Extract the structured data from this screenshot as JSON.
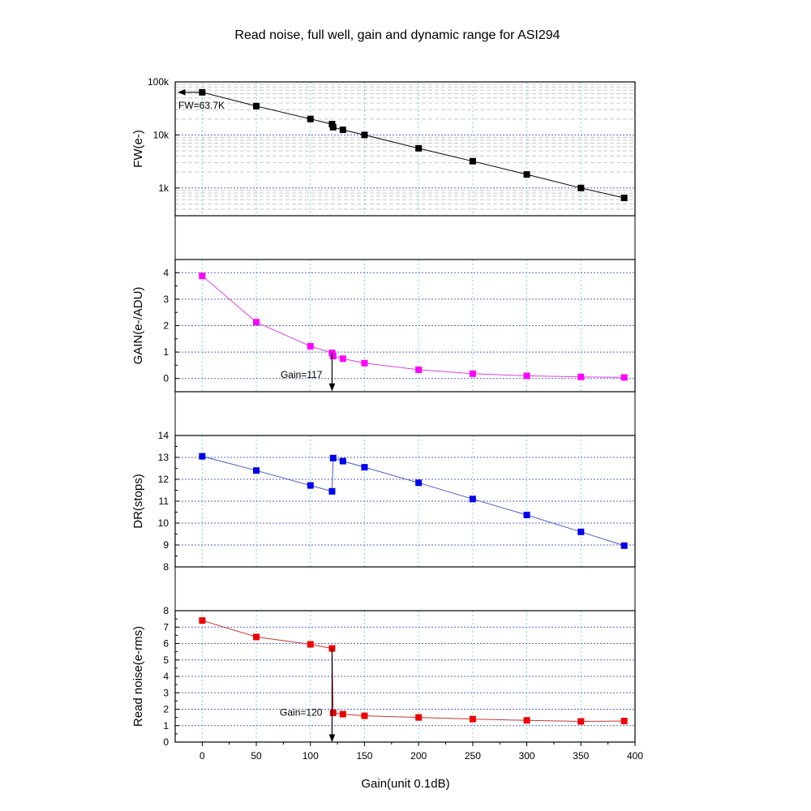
{
  "title": "Read noise, full well, gain and dynamic range for ASI294",
  "xlabel": "Gain(unit 0.1dB)",
  "xlim": [
    -25,
    400
  ],
  "xticks": [
    0,
    50,
    100,
    150,
    200,
    250,
    300,
    350,
    400
  ],
  "chart_data": [
    {
      "type": "line",
      "id": "fw",
      "ylabel": "FW(e-)",
      "yscale": "log",
      "ylim": [
        300,
        100000
      ],
      "yticks": [
        1000,
        10000,
        100000
      ],
      "ytick_labels": [
        "1k",
        "10k",
        "100k"
      ],
      "color": "#000000",
      "marker_color": "#000000",
      "x": [
        0,
        50,
        100,
        120,
        121,
        130,
        150,
        200,
        250,
        300,
        350,
        390
      ],
      "y": [
        63700,
        35000,
        20000,
        16000,
        14000,
        12500,
        10000,
        5600,
        3200,
        1800,
        1000,
        650
      ],
      "annotation": {
        "text": "FW=63.7K",
        "arrow_from": [
          0,
          63700
        ],
        "arrow_to": [
          -22,
          63700
        ]
      }
    },
    {
      "type": "line",
      "id": "gain",
      "ylabel": "GAIN(e-/ADU)",
      "yscale": "linear",
      "ylim": [
        -0.5,
        4.5
      ],
      "yticks": [
        0,
        1,
        2,
        3,
        4
      ],
      "ytick_labels": [
        "0",
        "1",
        "2",
        "3",
        "4"
      ],
      "color": "#e040e0",
      "marker_color": "#ff00ff",
      "x": [
        0,
        50,
        100,
        120,
        121,
        130,
        150,
        200,
        250,
        300,
        350,
        390
      ],
      "y": [
        3.88,
        2.13,
        1.22,
        0.97,
        0.85,
        0.75,
        0.58,
        0.33,
        0.18,
        0.1,
        0.06,
        0.04
      ],
      "annotation": {
        "text": "Gain=117",
        "arrow_from": [
          120,
          0.97
        ],
        "arrow_to": [
          120,
          -0.45
        ]
      }
    },
    {
      "type": "line",
      "id": "dr",
      "ylabel": "DR(stops)",
      "yscale": "linear",
      "ylim": [
        8,
        14
      ],
      "yticks": [
        8,
        9,
        10,
        11,
        12,
        13,
        14
      ],
      "ytick_labels": [
        "8",
        "9",
        "10",
        "11",
        "12",
        "13",
        "14"
      ],
      "color": "#4a5bc4",
      "marker_color": "#0000ee",
      "x": [
        0,
        50,
        100,
        120,
        121,
        130,
        150,
        200,
        250,
        300,
        350,
        390
      ],
      "y": [
        13.05,
        12.4,
        11.72,
        11.45,
        12.97,
        12.83,
        12.55,
        11.84,
        11.1,
        10.37,
        9.6,
        8.97
      ]
    },
    {
      "type": "line",
      "id": "rn",
      "ylabel": "Read noise(e-rms)",
      "yscale": "linear",
      "ylim": [
        0,
        8
      ],
      "yticks": [
        0,
        1,
        2,
        3,
        4,
        5,
        6,
        7,
        8
      ],
      "ytick_labels": [
        "0",
        "1",
        "2",
        "3",
        "4",
        "5",
        "6",
        "7",
        "8"
      ],
      "color": "#cc3333",
      "marker_color": "#ee0000",
      "x": [
        0,
        50,
        100,
        120,
        121,
        130,
        150,
        200,
        250,
        300,
        350,
        390
      ],
      "y": [
        7.4,
        6.4,
        5.95,
        5.7,
        1.78,
        1.7,
        1.6,
        1.5,
        1.4,
        1.32,
        1.26,
        1.28
      ],
      "annotation": {
        "text": "Gain=120",
        "arrow_from": [
          120,
          5.7
        ],
        "arrow_to": [
          120,
          0.05
        ]
      }
    }
  ]
}
